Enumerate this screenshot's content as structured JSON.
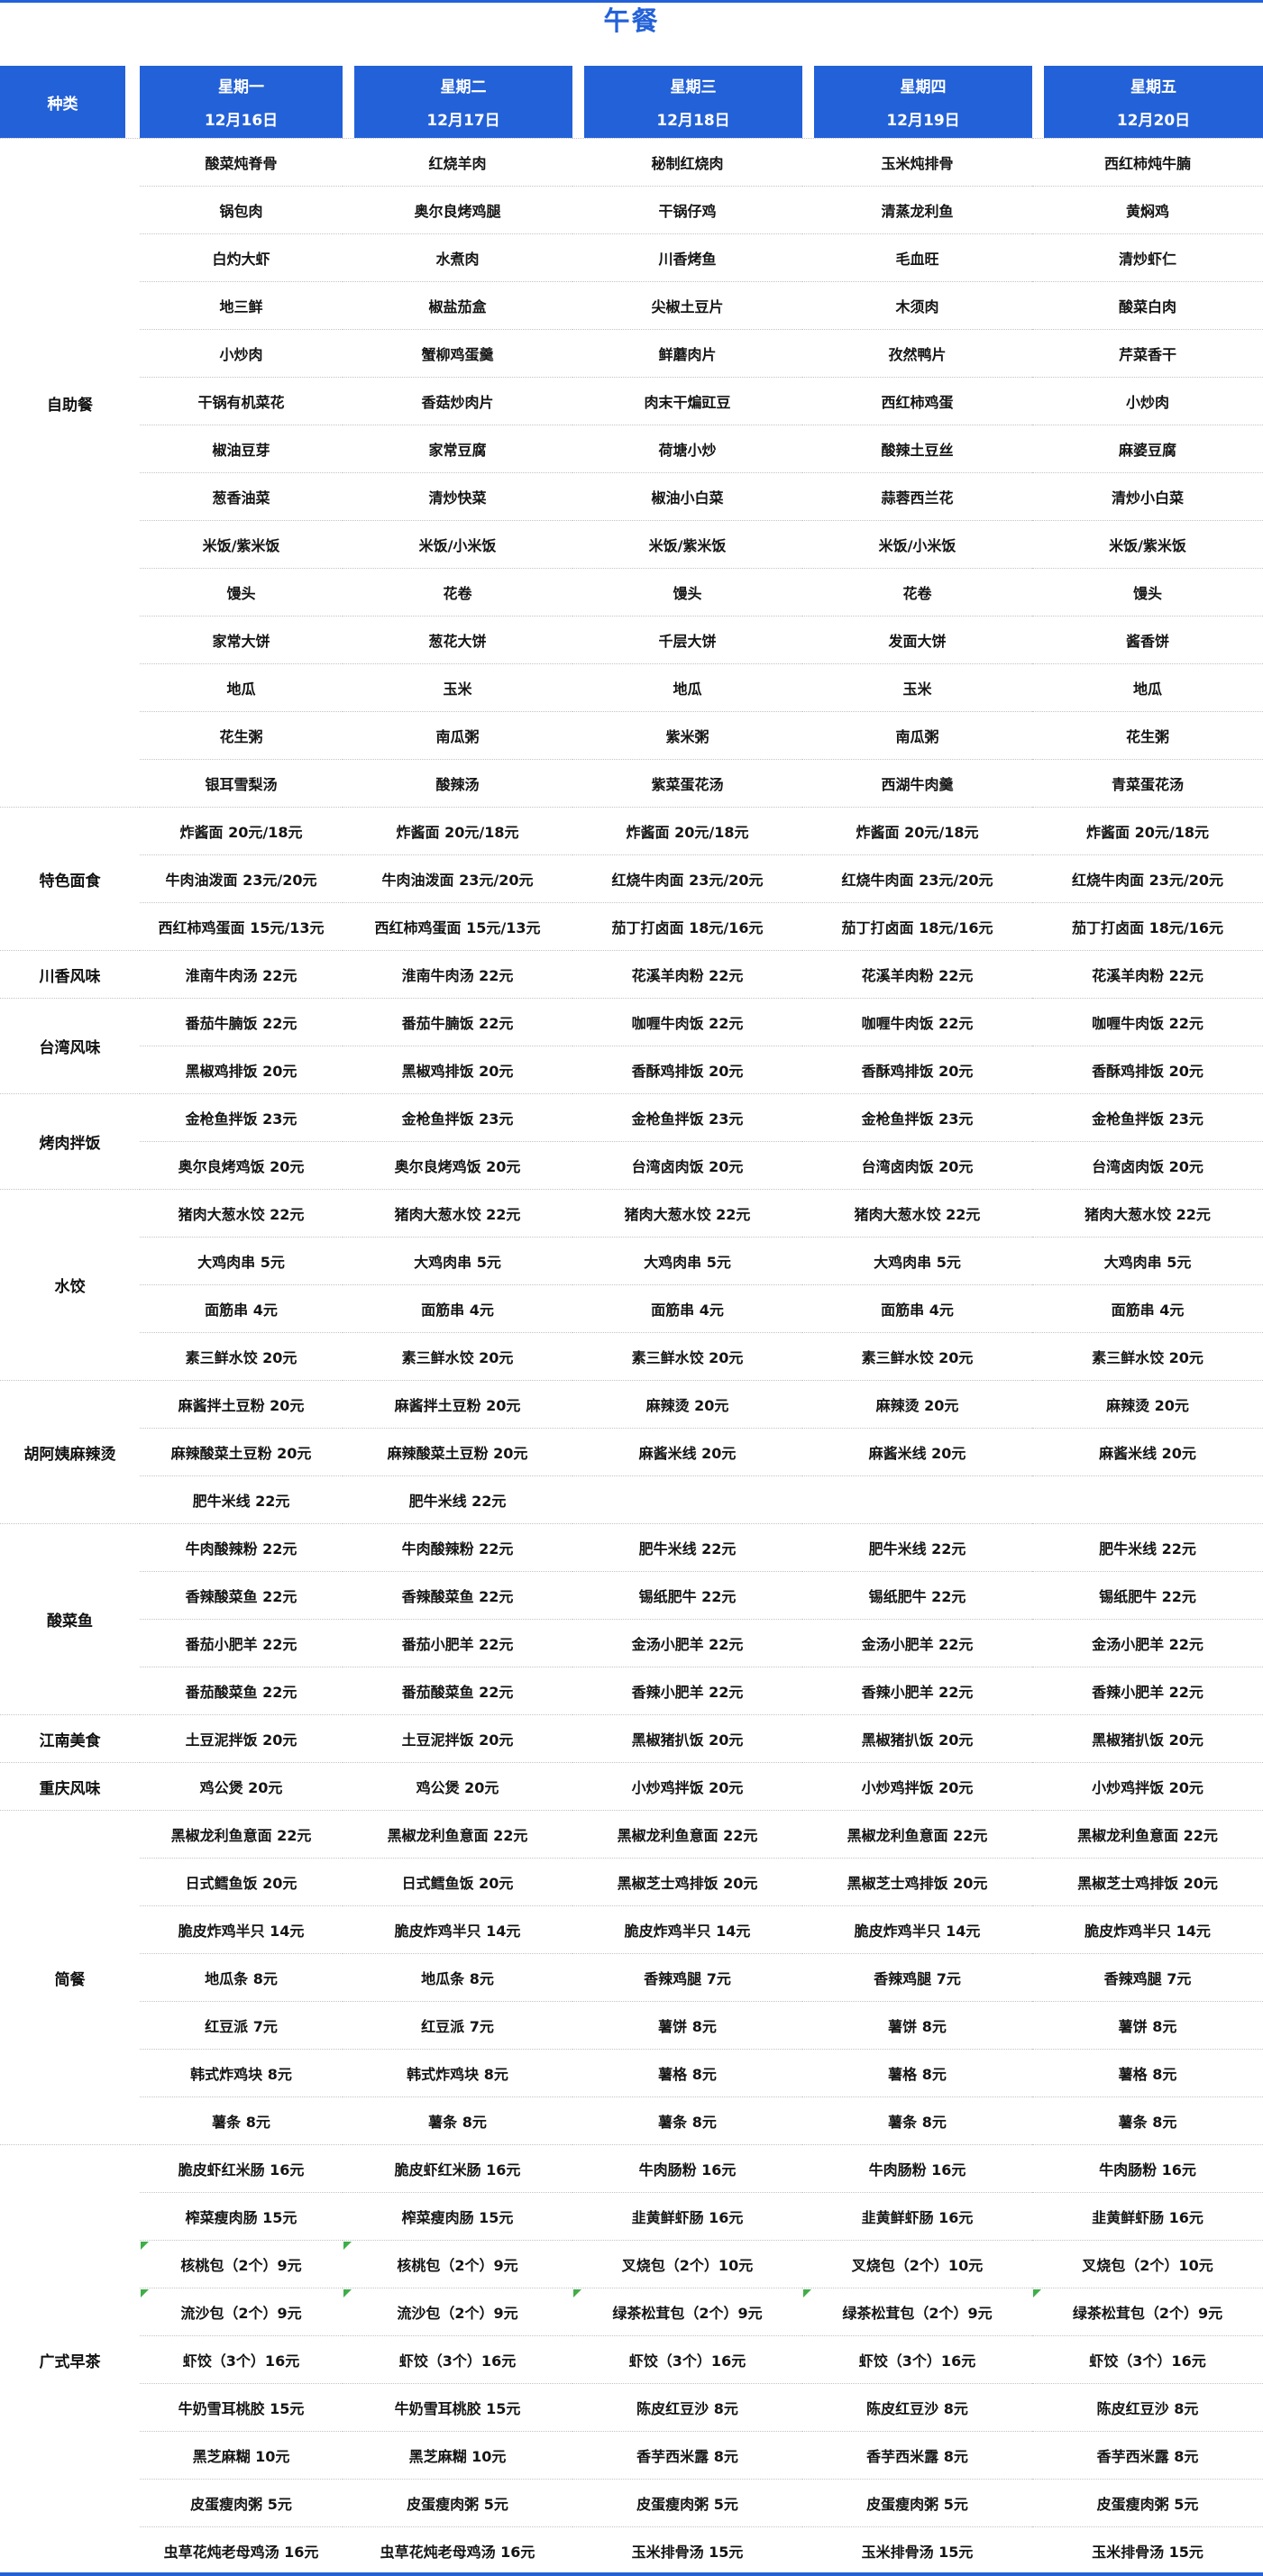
{
  "meal_title": "午餐",
  "colors": {
    "accent_blue": "#2361d8",
    "cell_text": "#141414",
    "divider_gray": "#c4c4c4",
    "flag_green": "#3fae49"
  },
  "header": {
    "category_label": "种类",
    "days": [
      {
        "weekday": "星期一",
        "date": "12月16日"
      },
      {
        "weekday": "星期二",
        "date": "12月17日"
      },
      {
        "weekday": "星期三",
        "date": "12月18日"
      },
      {
        "weekday": "星期四",
        "date": "12月19日"
      },
      {
        "weekday": "星期五",
        "date": "12月20日"
      }
    ]
  },
  "sections": [
    {
      "category": "自助餐",
      "rows": [
        [
          "酸菜炖脊骨",
          "红烧羊肉",
          "秘制红烧肉",
          "玉米炖排骨",
          "西红柿炖牛腩"
        ],
        [
          "锅包肉",
          "奥尔良烤鸡腿",
          "干锅仔鸡",
          "清蒸龙利鱼",
          "黄焖鸡"
        ],
        [
          "白灼大虾",
          "水煮肉",
          "川香烤鱼",
          "毛血旺",
          "清炒虾仁"
        ],
        [
          "地三鲜",
          "椒盐茄盒",
          "尖椒土豆片",
          "木须肉",
          "酸菜白肉"
        ],
        [
          "小炒肉",
          "蟹柳鸡蛋羹",
          "鲜蘑肉片",
          "孜然鸭片",
          "芹菜香干"
        ],
        [
          "干锅有机菜花",
          "香菇炒肉片",
          "肉末干煸豇豆",
          "西红柿鸡蛋",
          "小炒肉"
        ],
        [
          "椒油豆芽",
          "家常豆腐",
          "荷塘小炒",
          "酸辣土豆丝",
          "麻婆豆腐"
        ],
        [
          "葱香油菜",
          "清炒快菜",
          "椒油小白菜",
          "蒜蓉西兰花",
          "清炒小白菜"
        ],
        [
          "米饭/紫米饭",
          "米饭/小米饭",
          "米饭/紫米饭",
          "米饭/小米饭",
          "米饭/紫米饭"
        ],
        [
          "馒头",
          "花卷",
          "馒头",
          "花卷",
          "馒头"
        ],
        [
          "家常大饼",
          "葱花大饼",
          "千层大饼",
          "发面大饼",
          "酱香饼"
        ],
        [
          "地瓜",
          "玉米",
          "地瓜",
          "玉米",
          "地瓜"
        ],
        [
          "花生粥",
          "南瓜粥",
          "紫米粥",
          "南瓜粥",
          "花生粥"
        ],
        [
          "银耳雪梨汤",
          "酸辣汤",
          "紫菜蛋花汤",
          "西湖牛肉羹",
          "青菜蛋花汤"
        ]
      ]
    },
    {
      "category": "特色面食",
      "rows": [
        [
          "炸酱面 20元/18元",
          "炸酱面 20元/18元",
          "炸酱面 20元/18元",
          "炸酱面 20元/18元",
          "炸酱面 20元/18元"
        ],
        [
          "牛肉油泼面 23元/20元",
          "牛肉油泼面 23元/20元",
          "红烧牛肉面 23元/20元",
          "红烧牛肉面 23元/20元",
          "红烧牛肉面 23元/20元"
        ],
        [
          "西红柿鸡蛋面 15元/13元",
          "西红柿鸡蛋面 15元/13元",
          "茄丁打卤面 18元/16元",
          "茄丁打卤面 18元/16元",
          "茄丁打卤面 18元/16元"
        ]
      ]
    },
    {
      "category": "川香风味",
      "rows": [
        [
          "淮南牛肉汤 22元",
          "淮南牛肉汤 22元",
          "花溪羊肉粉 22元",
          "花溪羊肉粉 22元",
          "花溪羊肉粉 22元"
        ]
      ]
    },
    {
      "category": "台湾风味",
      "rows": [
        [
          "番茄牛腩饭 22元",
          "番茄牛腩饭 22元",
          "咖喱牛肉饭 22元",
          "咖喱牛肉饭 22元",
          "咖喱牛肉饭 22元"
        ],
        [
          "黑椒鸡排饭 20元",
          "黑椒鸡排饭 20元",
          "香酥鸡排饭 20元",
          "香酥鸡排饭 20元",
          "香酥鸡排饭 20元"
        ]
      ]
    },
    {
      "category": "烤肉拌饭",
      "rows": [
        [
          "金枪鱼拌饭 23元",
          "金枪鱼拌饭 23元",
          "金枪鱼拌饭 23元",
          "金枪鱼拌饭 23元",
          "金枪鱼拌饭 23元"
        ],
        [
          "奥尔良烤鸡饭 20元",
          "奥尔良烤鸡饭 20元",
          "台湾卤肉饭 20元",
          "台湾卤肉饭 20元",
          "台湾卤肉饭 20元"
        ]
      ]
    },
    {
      "category": "水饺",
      "rows": [
        [
          "猪肉大葱水饺 22元",
          "猪肉大葱水饺 22元",
          "猪肉大葱水饺 22元",
          "猪肉大葱水饺 22元",
          "猪肉大葱水饺 22元"
        ],
        [
          "大鸡肉串 5元",
          "大鸡肉串 5元",
          "大鸡肉串 5元",
          "大鸡肉串 5元",
          "大鸡肉串 5元"
        ],
        [
          "面筋串 4元",
          "面筋串 4元",
          "面筋串 4元",
          "面筋串 4元",
          "面筋串 4元"
        ],
        [
          "素三鲜水饺 20元",
          "素三鲜水饺 20元",
          "素三鲜水饺 20元",
          "素三鲜水饺 20元",
          "素三鲜水饺 20元"
        ]
      ]
    },
    {
      "category": "胡阿姨麻辣烫",
      "rows": [
        [
          "麻酱拌土豆粉 20元",
          "麻酱拌土豆粉 20元",
          "麻辣烫 20元",
          "麻辣烫 20元",
          "麻辣烫 20元"
        ],
        [
          "麻辣酸菜土豆粉 20元",
          "麻辣酸菜土豆粉 20元",
          "麻酱米线 20元",
          "麻酱米线 20元",
          "麻酱米线 20元"
        ],
        [
          "肥牛米线 22元",
          "肥牛米线 22元",
          "",
          "",
          ""
        ]
      ]
    },
    {
      "category": "酸菜鱼",
      "rows": [
        [
          "牛肉酸辣粉 22元",
          "牛肉酸辣粉 22元",
          "肥牛米线 22元",
          "肥牛米线 22元",
          "肥牛米线 22元"
        ],
        [
          "香辣酸菜鱼 22元",
          "香辣酸菜鱼 22元",
          "锡纸肥牛 22元",
          "锡纸肥牛 22元",
          "锡纸肥牛 22元"
        ],
        [
          "番茄小肥羊 22元",
          "番茄小肥羊 22元",
          "金汤小肥羊 22元",
          "金汤小肥羊 22元",
          "金汤小肥羊 22元"
        ],
        [
          "番茄酸菜鱼 22元",
          "番茄酸菜鱼 22元",
          "香辣小肥羊 22元",
          "香辣小肥羊 22元",
          "香辣小肥羊 22元"
        ]
      ]
    },
    {
      "category": "江南美食",
      "rows": [
        [
          "土豆泥拌饭 20元",
          "土豆泥拌饭 20元",
          "黑椒猪扒饭 20元",
          "黑椒猪扒饭 20元",
          "黑椒猪扒饭 20元"
        ]
      ]
    },
    {
      "category": "重庆风味",
      "rows": [
        [
          "鸡公煲 20元",
          "鸡公煲 20元",
          "小炒鸡拌饭 20元",
          "小炒鸡拌饭 20元",
          "小炒鸡拌饭 20元"
        ]
      ]
    },
    {
      "category": "简餐",
      "rows": [
        [
          "黑椒龙利鱼意面 22元",
          "黑椒龙利鱼意面 22元",
          "黑椒龙利鱼意面 22元",
          "黑椒龙利鱼意面 22元",
          "黑椒龙利鱼意面 22元"
        ],
        [
          "日式鳕鱼饭 20元",
          "日式鳕鱼饭 20元",
          "黑椒芝士鸡排饭 20元",
          "黑椒芝士鸡排饭 20元",
          "黑椒芝士鸡排饭 20元"
        ],
        [
          "脆皮炸鸡半只 14元",
          "脆皮炸鸡半只 14元",
          "脆皮炸鸡半只 14元",
          "脆皮炸鸡半只 14元",
          "脆皮炸鸡半只 14元"
        ],
        [
          "地瓜条 8元",
          "地瓜条 8元",
          "香辣鸡腿 7元",
          "香辣鸡腿 7元",
          "香辣鸡腿 7元"
        ],
        [
          "红豆派 7元",
          "红豆派 7元",
          "薯饼 8元",
          "薯饼 8元",
          "薯饼 8元"
        ],
        [
          "韩式炸鸡块 8元",
          "韩式炸鸡块 8元",
          "薯格 8元",
          "薯格 8元",
          "薯格 8元"
        ],
        [
          "薯条 8元",
          "薯条 8元",
          "薯条 8元",
          "薯条 8元",
          "薯条 8元"
        ]
      ]
    },
    {
      "category": "广式早茶",
      "rows": [
        [
          "脆皮虾红米肠 16元",
          "脆皮虾红米肠 16元",
          "牛肉肠粉 16元",
          "牛肉肠粉 16元",
          "牛肉肠粉 16元"
        ],
        [
          "榨菜瘦肉肠 15元",
          "榨菜瘦肉肠 15元",
          "韭黄鲜虾肠 16元",
          "韭黄鲜虾肠 16元",
          "韭黄鲜虾肠 16元"
        ],
        [
          "核桃包（2个）9元",
          "核桃包（2个）9元",
          "叉烧包（2个）10元",
          "叉烧包（2个）10元",
          "叉烧包（2个）10元"
        ],
        [
          "流沙包（2个）9元",
          "流沙包（2个）9元",
          "绿茶松茸包（2个）9元",
          "绿茶松茸包（2个）9元",
          "绿茶松茸包（2个）9元"
        ],
        [
          "虾饺（3个）16元",
          "虾饺（3个）16元",
          "虾饺（3个）16元",
          "虾饺（3个）16元",
          "虾饺（3个）16元"
        ],
        [
          "牛奶雪耳桃胶 15元",
          "牛奶雪耳桃胶 15元",
          "陈皮红豆沙 8元",
          "陈皮红豆沙 8元",
          "陈皮红豆沙 8元"
        ],
        [
          "黑芝麻糊 10元",
          "黑芝麻糊 10元",
          "香芋西米露 8元",
          "香芋西米露 8元",
          "香芋西米露 8元"
        ],
        [
          "皮蛋瘦肉粥 5元",
          "皮蛋瘦肉粥 5元",
          "皮蛋瘦肉粥 5元",
          "皮蛋瘦肉粥 5元",
          "皮蛋瘦肉粥 5元"
        ],
        [
          "虫草花炖老母鸡汤 16元",
          "虫草花炖老母鸡汤 16元",
          "玉米排骨汤 15元",
          "玉米排骨汤 15元",
          "玉米排骨汤 15元"
        ]
      ],
      "flags": [
        [
          2,
          0
        ],
        [
          2,
          1
        ],
        [
          3,
          0
        ],
        [
          3,
          1
        ],
        [
          3,
          2
        ],
        [
          3,
          3
        ],
        [
          3,
          4
        ]
      ]
    }
  ]
}
